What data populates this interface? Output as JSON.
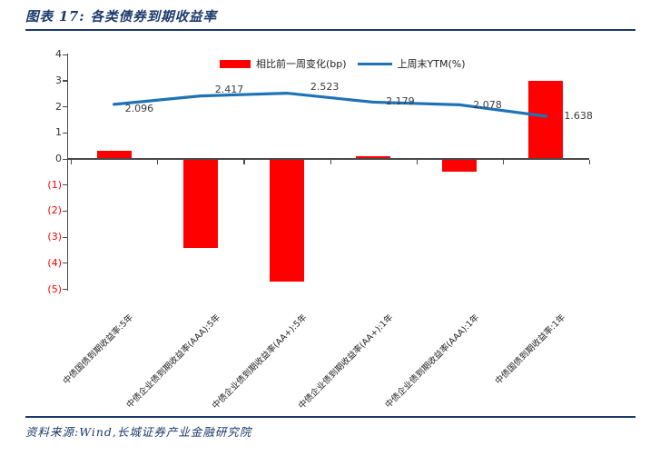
{
  "header": {
    "title": "图表 17: 各类债券到期收益率"
  },
  "footer": {
    "source": "资料来源:Wind,长城证券产业金融研究院"
  },
  "colors": {
    "accent_navy": "#1b3a6b",
    "bar_red": "#ff0000",
    "line_blue": "#1e73b8",
    "axis_gray": "#4a4a4a",
    "negative_tick_red": "#ff0000"
  },
  "chart_data": {
    "type": "combo (bar + line)",
    "title": "各类债券到期收益率",
    "categories": [
      "中债国债到期收益率:5年",
      "中债企业债到期收益率(AAA):5年",
      "中债企业债到期收益率(AA+):5年",
      "中债企业债到期收益率(AA+):1年",
      "中债企业债到期收益率(AAA):1年",
      "中债国债到期收益率:1年"
    ],
    "series": [
      {
        "name": "相比前一周变化(bp)",
        "type": "bar",
        "color": "#ff0000",
        "values": [
          0.3,
          -3.4,
          -4.7,
          0.1,
          -0.5,
          3.0
        ]
      },
      {
        "name": "上周末YTM(%)",
        "type": "line",
        "color": "#1e73b8",
        "values": [
          2.096,
          2.417,
          2.523,
          2.179,
          2.078,
          1.638
        ],
        "point_labels": [
          "2.096",
          "2.417",
          "2.523",
          "2.179",
          "2.078",
          "1.638"
        ]
      }
    ],
    "ylim": [
      -5,
      4
    ],
    "ytick_step": 1,
    "ytick_labels": [
      "4",
      "3",
      "2",
      "1",
      "0",
      "(1)",
      "(2)",
      "(3)",
      "(4)",
      "(5)"
    ],
    "negative_tick_color": "#ff0000",
    "legend_position": "top-center",
    "grid": false
  }
}
